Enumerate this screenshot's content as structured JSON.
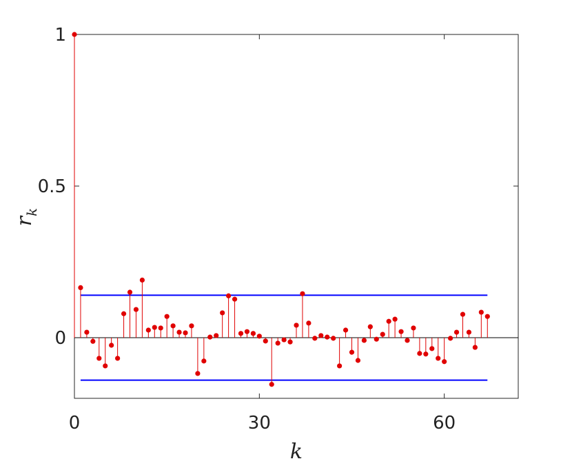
{
  "chart_data": {
    "type": "stem",
    "xlabel": "k",
    "ylabel": "r",
    "ylabel_sub": "k",
    "x": [
      0,
      1,
      2,
      3,
      4,
      5,
      6,
      7,
      8,
      9,
      10,
      11,
      12,
      13,
      14,
      15,
      16,
      17,
      18,
      19,
      20,
      21,
      22,
      23,
      24,
      25,
      26,
      27,
      28,
      29,
      30,
      31,
      32,
      33,
      34,
      35,
      36,
      37,
      38,
      39,
      40,
      41,
      42,
      43,
      44,
      45,
      46,
      47,
      48,
      49,
      50,
      51,
      52,
      53,
      54,
      55,
      56,
      57,
      58,
      59,
      60,
      61,
      62,
      63,
      64,
      65,
      66,
      67
    ],
    "values": [
      1,
      0.165,
      0.018,
      -0.012,
      -0.068,
      -0.093,
      -0.025,
      -0.068,
      0.079,
      0.15,
      0.093,
      0.19,
      0.025,
      0.034,
      0.032,
      0.07,
      0.039,
      0.018,
      0.016,
      0.039,
      -0.118,
      -0.077,
      0.002,
      0.007,
      0.082,
      0.138,
      0.127,
      0.014,
      0.02,
      0.014,
      0.005,
      -0.011,
      -0.154,
      -0.018,
      -0.007,
      -0.014,
      0.041,
      0.145,
      0.048,
      -0.002,
      0.007,
      0.002,
      -0.002,
      -0.093,
      0.025,
      -0.048,
      -0.075,
      -0.009,
      0.036,
      -0.005,
      0.011,
      0.054,
      0.061,
      0.02,
      -0.009,
      0.032,
      -0.052,
      -0.054,
      -0.036,
      -0.068,
      -0.079,
      -0.002,
      0.018,
      0.077,
      0.018,
      -0.032,
      0.084,
      0.07
    ],
    "color": "#e00000",
    "confidence_bounds": {
      "x": [
        1,
        67
      ],
      "upper": 0.14,
      "lower": -0.14,
      "color": "#0000ff"
    },
    "xlim": [
      0,
      72
    ],
    "ylim": [
      -0.2,
      1
    ],
    "xticks": [
      0,
      30,
      60
    ],
    "yticks": [
      0,
      0.5,
      1
    ]
  }
}
